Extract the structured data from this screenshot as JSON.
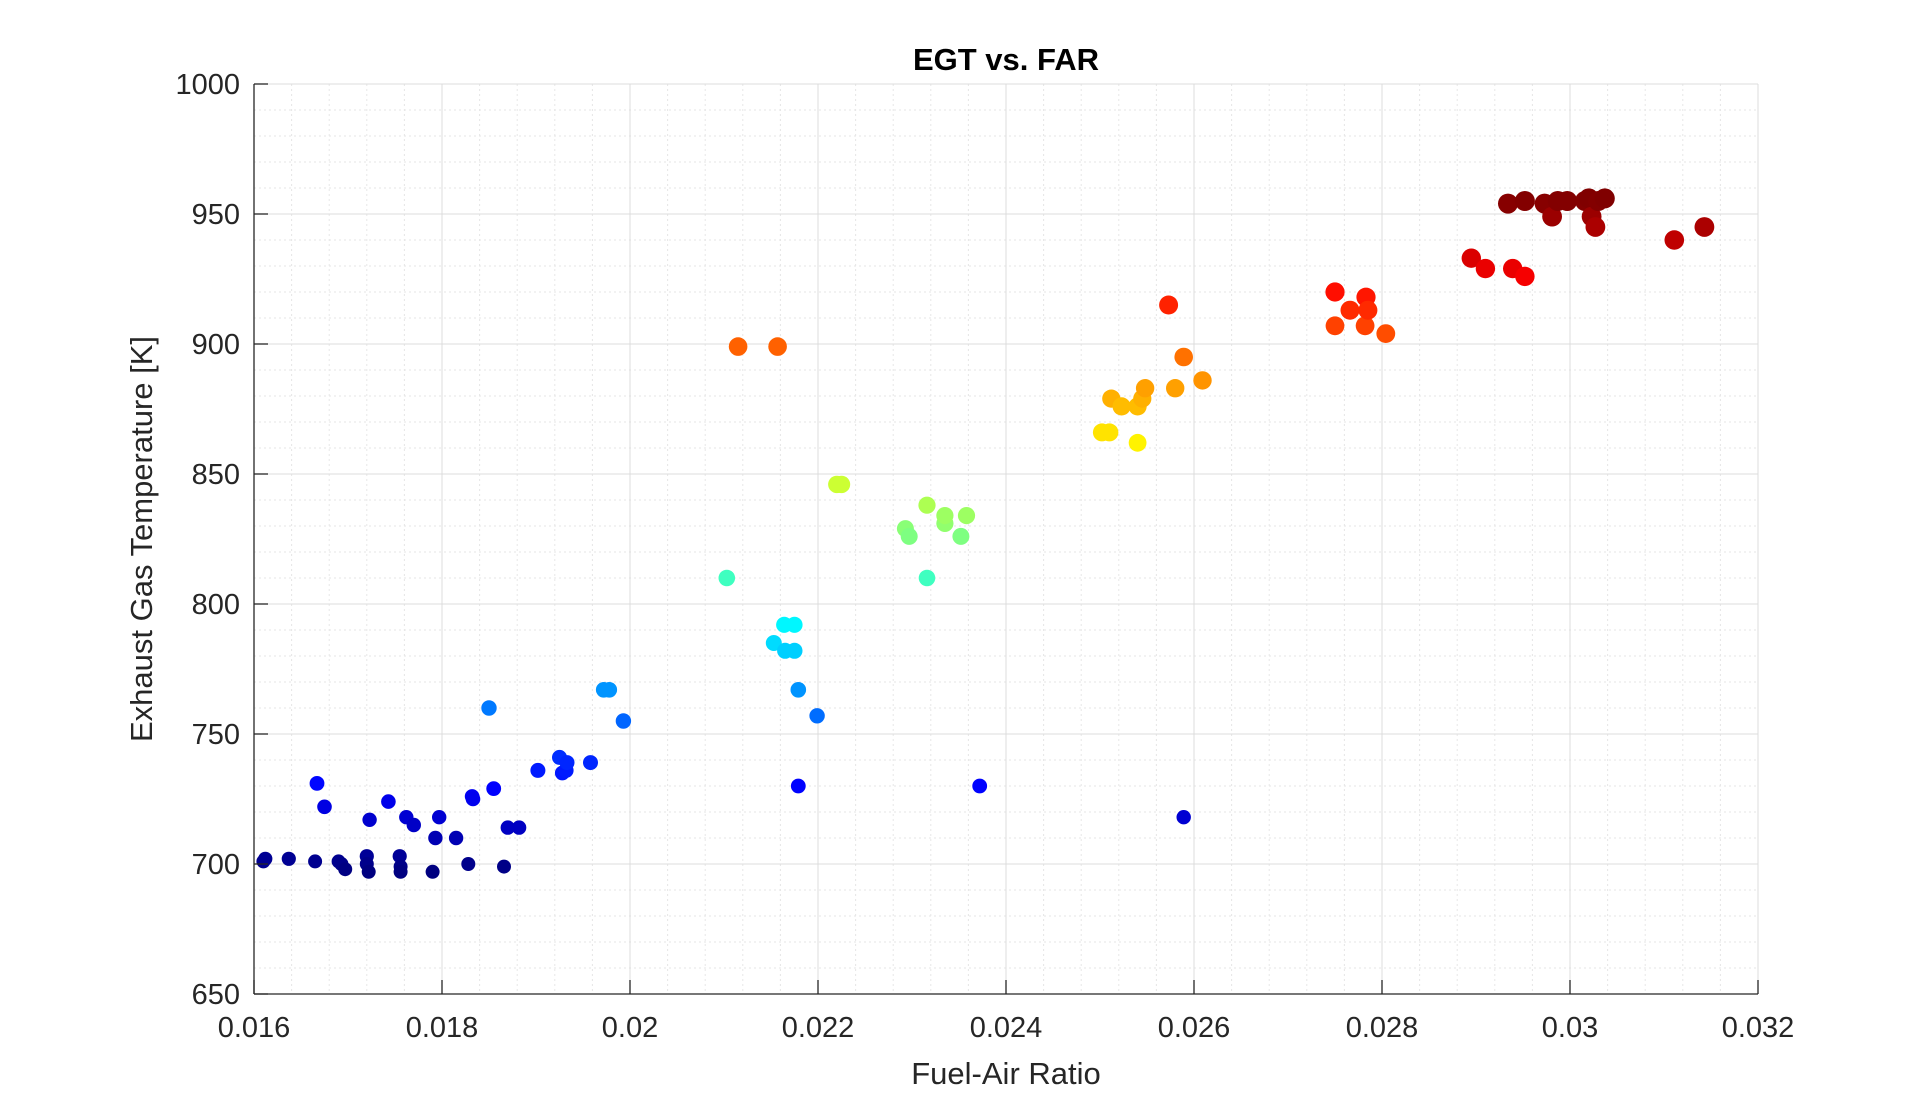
{
  "chart_data": {
    "type": "scatter",
    "title": "EGT vs. FAR",
    "xlabel": "Fuel-Air Ratio",
    "ylabel": "Exhaust Gas Temperature [K]",
    "xlim": [
      0.016,
      0.032
    ],
    "ylim": [
      650,
      1000
    ],
    "grid": true,
    "minor_grid": true,
    "legend": "none",
    "colormap": "jet",
    "color_range": [
      697,
      956
    ],
    "x_ticks": [
      0.016,
      0.018,
      0.02,
      0.022,
      0.024,
      0.026,
      0.028,
      0.03,
      0.032
    ],
    "x_tick_labels": [
      "0.016",
      "0.018",
      "0.02",
      "0.022",
      "0.024",
      "0.026",
      "0.028",
      "0.03",
      "0.032"
    ],
    "y_ticks": [
      650,
      700,
      750,
      800,
      850,
      900,
      950,
      1000
    ],
    "y_tick_labels": [
      "650",
      "700",
      "750",
      "800",
      "850",
      "900",
      "950",
      "1000"
    ],
    "series": [
      {
        "name": "Exhaust Gas Temperature",
        "points": [
          [
            0.0161,
            701
          ],
          [
            0.01612,
            702
          ],
          [
            0.01637,
            702
          ],
          [
            0.01665,
            701
          ],
          [
            0.0169,
            701
          ],
          [
            0.01693,
            700
          ],
          [
            0.01697,
            698
          ],
          [
            0.0172,
            703
          ],
          [
            0.0172,
            700
          ],
          [
            0.01722,
            697
          ],
          [
            0.01755,
            703
          ],
          [
            0.01756,
            699
          ],
          [
            0.01756,
            697
          ],
          [
            0.0179,
            697
          ],
          [
            0.01828,
            700
          ],
          [
            0.01866,
            699
          ],
          [
            0.01667,
            731
          ],
          [
            0.01675,
            722
          ],
          [
            0.01723,
            717
          ],
          [
            0.01743,
            724
          ],
          [
            0.01762,
            718
          ],
          [
            0.0177,
            715
          ],
          [
            0.01793,
            710
          ],
          [
            0.01797,
            718
          ],
          [
            0.01815,
            710
          ],
          [
            0.01832,
            726
          ],
          [
            0.01833,
            725
          ],
          [
            0.0185,
            760
          ],
          [
            0.01855,
            729
          ],
          [
            0.0187,
            714
          ],
          [
            0.01882,
            714
          ],
          [
            0.01902,
            736
          ],
          [
            0.01925,
            741
          ],
          [
            0.01928,
            735
          ],
          [
            0.01932,
            736
          ],
          [
            0.01933,
            739
          ],
          [
            0.01958,
            739
          ],
          [
            0.01972,
            767
          ],
          [
            0.01978,
            767
          ],
          [
            0.01993,
            755
          ],
          [
            0.02103,
            810
          ],
          [
            0.02115,
            899
          ],
          [
            0.02153,
            785
          ],
          [
            0.02157,
            899
          ],
          [
            0.02164,
            792
          ],
          [
            0.02165,
            782
          ],
          [
            0.02175,
            792
          ],
          [
            0.02175,
            782
          ],
          [
            0.02179,
            767
          ],
          [
            0.02179,
            730
          ],
          [
            0.02199,
            757
          ],
          [
            0.0222,
            846
          ],
          [
            0.02225,
            846
          ],
          [
            0.02293,
            829
          ],
          [
            0.02297,
            826
          ],
          [
            0.02316,
            838
          ],
          [
            0.02316,
            810
          ],
          [
            0.02335,
            831
          ],
          [
            0.02335,
            834
          ],
          [
            0.02352,
            826
          ],
          [
            0.02358,
            834
          ],
          [
            0.02372,
            730
          ],
          [
            0.02502,
            866
          ],
          [
            0.0251,
            866
          ],
          [
            0.02512,
            879
          ],
          [
            0.02523,
            876
          ],
          [
            0.0254,
            862
          ],
          [
            0.0254,
            876
          ],
          [
            0.02545,
            879
          ],
          [
            0.02548,
            883
          ],
          [
            0.02573,
            915
          ],
          [
            0.0258,
            883
          ],
          [
            0.02589,
            718
          ],
          [
            0.02589,
            895
          ],
          [
            0.02609,
            886
          ],
          [
            0.0275,
            920
          ],
          [
            0.0275,
            907
          ],
          [
            0.02766,
            913
          ],
          [
            0.02782,
            907
          ],
          [
            0.02783,
            918
          ],
          [
            0.02785,
            913
          ],
          [
            0.02804,
            904
          ],
          [
            0.02895,
            933
          ],
          [
            0.0291,
            929
          ],
          [
            0.02934,
            954
          ],
          [
            0.02939,
            929
          ],
          [
            0.02952,
            926
          ],
          [
            0.02952,
            955
          ],
          [
            0.02973,
            954
          ],
          [
            0.02981,
            949
          ],
          [
            0.02987,
            955
          ],
          [
            0.02997,
            955
          ],
          [
            0.03016,
            955
          ],
          [
            0.0302,
            956
          ],
          [
            0.03023,
            949
          ],
          [
            0.03027,
            945
          ],
          [
            0.0303,
            955
          ],
          [
            0.03037,
            956
          ],
          [
            0.03111,
            940
          ],
          [
            0.03143,
            945
          ]
        ]
      }
    ]
  }
}
